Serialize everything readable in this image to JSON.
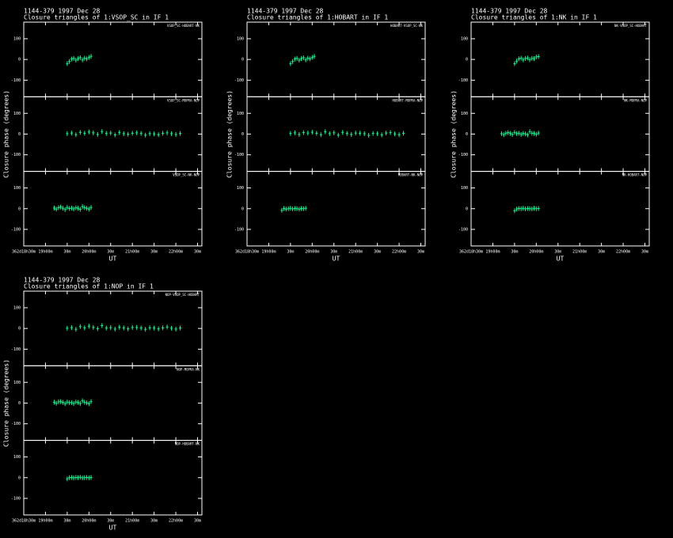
{
  "chart_data": [
    {
      "type": "scatter",
      "title": "1144-379   1997 Dec 28",
      "subtitle": "Closure triangles of 1:VSOP_SC in IF 1",
      "y_label": "Closure phase  (degrees)",
      "x_label": "UT",
      "color": "#00ff99",
      "xlim": [
        18.5,
        22.6
      ],
      "ylim": [
        -180,
        180
      ],
      "yticks": [
        100,
        0,
        -100
      ],
      "xticks": [
        {
          "value": 18.5,
          "label": "362d18h30m"
        },
        {
          "value": 19,
          "label": "19h00m"
        },
        {
          "value": 19.5,
          "label": "30m"
        },
        {
          "value": 20,
          "label": "20h00m"
        },
        {
          "value": 20.5,
          "label": "30m"
        },
        {
          "value": 21,
          "label": "21h00m"
        },
        {
          "value": 21.5,
          "label": "30m"
        },
        {
          "value": 22,
          "label": "22h00m"
        },
        {
          "value": 22.5,
          "label": "30m"
        }
      ],
      "panels": [
        {
          "label": "VSOP_SC-HOBART-NK",
          "x": [
            19.5,
            19.55,
            19.6,
            19.65,
            19.7,
            19.75,
            19.8,
            19.85,
            19.9,
            19.95,
            20,
            20.05
          ],
          "values": [
            -20,
            -10,
            2,
            5,
            -3,
            4,
            8,
            -2,
            6,
            3,
            10,
            15
          ]
        },
        {
          "label": "VSOP_SC-MOPRA-NOP",
          "x": [
            19.5,
            19.6,
            19.7,
            19.8,
            19.9,
            20,
            20.1,
            20.2,
            20.3,
            20.4,
            20.5,
            20.6,
            20.7,
            20.8,
            20.9,
            21,
            21.1,
            21.2,
            21.3,
            21.4,
            21.5,
            21.6,
            21.7,
            21.8,
            21.9,
            22,
            22.1
          ],
          "values": [
            2,
            5,
            -3,
            8,
            4,
            10,
            6,
            -2,
            12,
            3,
            5,
            -4,
            7,
            2,
            -1,
            4,
            6,
            3,
            -5,
            2,
            1,
            -3,
            4,
            6,
            2,
            -2,
            3
          ]
        },
        {
          "label": "VSOP_SC-NK-NOP",
          "x": [
            19.2,
            19.25,
            19.3,
            19.35,
            19.4,
            19.45,
            19.5,
            19.55,
            19.6,
            19.65,
            19.7,
            19.75,
            19.8,
            19.85,
            19.9,
            19.95,
            20,
            20.05
          ],
          "values": [
            3,
            -2,
            5,
            8,
            2,
            -4,
            6,
            1,
            3,
            -1,
            4,
            2,
            -3,
            10,
            5,
            2,
            -2,
            6
          ]
        }
      ]
    },
    {
      "type": "scatter",
      "title": "1144-379   1997 Dec 28",
      "subtitle": "Closure triangles of 1:HOBART in IF 1",
      "y_label": "Closure phase  (degrees)",
      "x_label": "UT",
      "color": "#00ff99",
      "xlim": [
        18.5,
        22.6
      ],
      "ylim": [
        -180,
        180
      ],
      "yticks": [
        100,
        0,
        -100
      ],
      "xticks": [
        {
          "value": 18.5,
          "label": "362d18h30m"
        },
        {
          "value": 19,
          "label": "19h00m"
        },
        {
          "value": 19.5,
          "label": "30m"
        },
        {
          "value": 20,
          "label": "20h00m"
        },
        {
          "value": 20.5,
          "label": "30m"
        },
        {
          "value": 21,
          "label": "21h00m"
        },
        {
          "value": 21.5,
          "label": "30m"
        },
        {
          "value": 22,
          "label": "22h00m"
        },
        {
          "value": 22.5,
          "label": "30m"
        }
      ],
      "panels": [
        {
          "label": "HOBART-VSOP_SC-NK",
          "x": [
            19.5,
            19.55,
            19.6,
            19.65,
            19.7,
            19.75,
            19.8,
            19.85,
            19.9,
            19.95,
            20,
            20.05
          ],
          "values": [
            -20,
            -10,
            2,
            5,
            -3,
            4,
            8,
            -2,
            6,
            3,
            10,
            15
          ]
        },
        {
          "label": "HOBART-MOPRA-NOP",
          "x": [
            19.5,
            19.6,
            19.7,
            19.8,
            19.9,
            20,
            20.1,
            20.2,
            20.3,
            20.4,
            20.5,
            20.6,
            20.7,
            20.8,
            20.9,
            21,
            21.1,
            21.2,
            21.3,
            21.4,
            21.5,
            21.6,
            21.7,
            21.8,
            21.9,
            22,
            22.1
          ],
          "values": [
            3,
            6,
            -2,
            7,
            5,
            9,
            4,
            -3,
            11,
            2,
            6,
            -5,
            8,
            3,
            -2,
            5,
            4,
            2,
            -6,
            3,
            2,
            -4,
            5,
            7,
            1,
            -3,
            4
          ]
        },
        {
          "label": "HOBART-NK-NOP",
          "x": [
            19.3,
            19.35,
            19.4,
            19.45,
            19.5,
            19.55,
            19.6,
            19.65,
            19.7,
            19.75,
            19.8,
            19.85
          ],
          "values": [
            -8,
            1,
            -2,
            0,
            2,
            -1,
            1,
            0,
            -2,
            1,
            0,
            2
          ]
        }
      ]
    },
    {
      "type": "scatter",
      "title": "1144-379   1997 Dec 28",
      "subtitle": "Closure triangles of 1:NK in IF 1",
      "y_label": "Closure phase  (degrees)",
      "x_label": "UT",
      "color": "#00ff99",
      "xlim": [
        18.5,
        22.6
      ],
      "ylim": [
        -180,
        180
      ],
      "yticks": [
        100,
        0,
        -100
      ],
      "xticks": [
        {
          "value": 18.5,
          "label": "362d18h30m"
        },
        {
          "value": 19,
          "label": "19h00m"
        },
        {
          "value": 19.5,
          "label": "30m"
        },
        {
          "value": 20,
          "label": "20h00m"
        },
        {
          "value": 20.5,
          "label": "30m"
        },
        {
          "value": 21,
          "label": "21h00m"
        },
        {
          "value": 21.5,
          "label": "30m"
        },
        {
          "value": 22,
          "label": "22h00m"
        },
        {
          "value": 22.5,
          "label": "30m"
        }
      ],
      "panels": [
        {
          "label": "NK-VSOP_SC-HOBART",
          "x": [
            19.5,
            19.55,
            19.6,
            19.65,
            19.7,
            19.75,
            19.8,
            19.85,
            19.9,
            19.95,
            20,
            20.05
          ],
          "values": [
            -20,
            -8,
            3,
            6,
            -2,
            5,
            7,
            -1,
            5,
            4,
            12,
            14
          ]
        },
        {
          "label": "NK-MOPRA-NOP",
          "x": [
            19.2,
            19.25,
            19.3,
            19.35,
            19.4,
            19.45,
            19.5,
            19.55,
            19.6,
            19.65,
            19.7,
            19.75,
            19.8,
            19.85,
            19.9,
            19.95,
            20,
            20.05
          ],
          "values": [
            2,
            -3,
            4,
            7,
            3,
            -2,
            8,
            2,
            4,
            -2,
            3,
            1,
            -4,
            12,
            4,
            3,
            -1,
            5
          ]
        },
        {
          "label": "NK-HOBART-NOP",
          "x": [
            19.5,
            19.55,
            19.6,
            19.65,
            19.7,
            19.75,
            19.8,
            19.85,
            19.9,
            19.95,
            20,
            20.05
          ],
          "values": [
            -10,
            -2,
            1,
            0,
            2,
            -1,
            1,
            0,
            -1,
            2,
            0,
            1
          ]
        }
      ]
    },
    {
      "type": "scatter",
      "title": "1144-379   1997 Dec 28",
      "subtitle": "Closure triangles of 1:NOP in IF 1",
      "y_label": "Closure phase  (degrees)",
      "x_label": "UT",
      "color": "#00ff99",
      "xlim": [
        18.5,
        22.6
      ],
      "ylim": [
        -180,
        180
      ],
      "yticks": [
        100,
        0,
        -100
      ],
      "xticks": [
        {
          "value": 18.5,
          "label": "362d18h30m"
        },
        {
          "value": 19,
          "label": "19h00m"
        },
        {
          "value": 19.5,
          "label": "30m"
        },
        {
          "value": 20,
          "label": "20h00m"
        },
        {
          "value": 20.5,
          "label": "30m"
        },
        {
          "value": 21,
          "label": "21h00m"
        },
        {
          "value": 21.5,
          "label": "30m"
        },
        {
          "value": 22,
          "label": "22h00m"
        },
        {
          "value": 22.5,
          "label": "30m"
        }
      ],
      "panels": [
        {
          "label": "NOP-VSOP_SC-HOBART",
          "x": [
            19.5,
            19.6,
            19.7,
            19.8,
            19.9,
            20,
            20.1,
            20.2,
            20.3,
            20.4,
            20.5,
            20.6,
            20.7,
            20.8,
            20.9,
            21,
            21.1,
            21.2,
            21.3,
            21.4,
            21.5,
            21.6,
            21.7,
            21.8,
            21.9,
            22,
            22.1
          ],
          "values": [
            1,
            4,
            -4,
            9,
            3,
            11,
            5,
            -1,
            14,
            2,
            4,
            -3,
            6,
            3,
            -2,
            5,
            5,
            2,
            -4,
            3,
            2,
            -2,
            3,
            7,
            1,
            -3,
            2
          ]
        },
        {
          "label": "NOP-MOPRA-NK",
          "x": [
            19.2,
            19.25,
            19.3,
            19.35,
            19.4,
            19.45,
            19.5,
            19.55,
            19.6,
            19.65,
            19.7,
            19.75,
            19.8,
            19.85,
            19.9,
            19.95,
            20,
            20.05
          ],
          "values": [
            4,
            -1,
            6,
            7,
            3,
            -3,
            5,
            2,
            2,
            -2,
            5,
            3,
            -2,
            11,
            4,
            1,
            -3,
            7
          ]
        },
        {
          "label": "NOP-HOBART-NK",
          "x": [
            19.5,
            19.55,
            19.6,
            19.65,
            19.7,
            19.75,
            19.8,
            19.85,
            19.9,
            19.95,
            20,
            20.05
          ],
          "values": [
            -6,
            0,
            1,
            -1,
            1,
            0,
            2,
            -1,
            0,
            1,
            -1,
            1
          ]
        }
      ]
    }
  ]
}
